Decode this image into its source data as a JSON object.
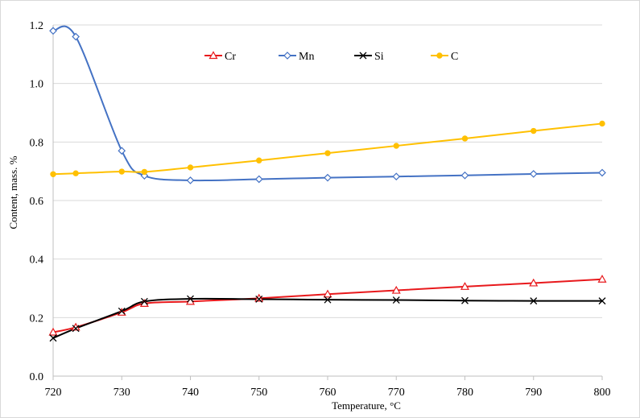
{
  "chart_data": {
    "type": "line",
    "title": "",
    "xlabel": "Temperature, ",
    "xlabel_unit": "°C",
    "ylabel": "Content, mass. %",
    "xlim": [
      720,
      800
    ],
    "ylim": [
      0.0,
      1.2
    ],
    "x_ticks": [
      720,
      730,
      740,
      750,
      760,
      770,
      780,
      790,
      800
    ],
    "y_ticks": [
      "0.0",
      "0.2",
      "0.4",
      "0.6",
      "0.8",
      "1.0",
      "1.2"
    ],
    "y_tick_values": [
      0.0,
      0.2,
      0.4,
      0.6,
      0.8,
      1.0,
      1.2
    ],
    "grid": "horizontal",
    "legend_position": "top",
    "series": [
      {
        "name": "Cr",
        "color": "#e8191c",
        "marker": "triangle",
        "points": [
          [
            720,
            0.15
          ],
          [
            723.3,
            0.167
          ],
          [
            730,
            0.218
          ],
          [
            733.3,
            0.248
          ],
          [
            740,
            0.255
          ],
          [
            750,
            0.266
          ],
          [
            760,
            0.28
          ],
          [
            770,
            0.293
          ],
          [
            780,
            0.306
          ],
          [
            790,
            0.318
          ],
          [
            800,
            0.331
          ]
        ]
      },
      {
        "name": "Mn",
        "color": "#4472c4",
        "marker": "diamond",
        "points": [
          [
            720,
            1.18
          ],
          [
            723.3,
            1.16
          ],
          [
            730,
            0.77
          ],
          [
            733.3,
            0.685
          ],
          [
            740,
            0.669
          ],
          [
            750,
            0.673
          ],
          [
            760,
            0.678
          ],
          [
            770,
            0.682
          ],
          [
            780,
            0.686
          ],
          [
            790,
            0.691
          ],
          [
            800,
            0.695
          ]
        ]
      },
      {
        "name": "Si",
        "color": "#000000",
        "marker": "x",
        "points": [
          [
            720,
            0.13
          ],
          [
            723.3,
            0.163
          ],
          [
            730,
            0.222
          ],
          [
            733.3,
            0.255
          ],
          [
            740,
            0.264
          ],
          [
            750,
            0.263
          ],
          [
            760,
            0.261
          ],
          [
            770,
            0.26
          ],
          [
            780,
            0.258
          ],
          [
            790,
            0.257
          ],
          [
            800,
            0.257
          ]
        ]
      },
      {
        "name": "C",
        "color": "#ffc000",
        "marker": "circle",
        "points": [
          [
            720,
            0.69
          ],
          [
            723.3,
            0.693
          ],
          [
            730,
            0.699
          ],
          [
            733.3,
            0.698
          ],
          [
            740,
            0.713
          ],
          [
            750,
            0.737
          ],
          [
            760,
            0.762
          ],
          [
            770,
            0.787
          ],
          [
            780,
            0.812
          ],
          [
            790,
            0.838
          ],
          [
            800,
            0.863
          ]
        ]
      }
    ]
  }
}
